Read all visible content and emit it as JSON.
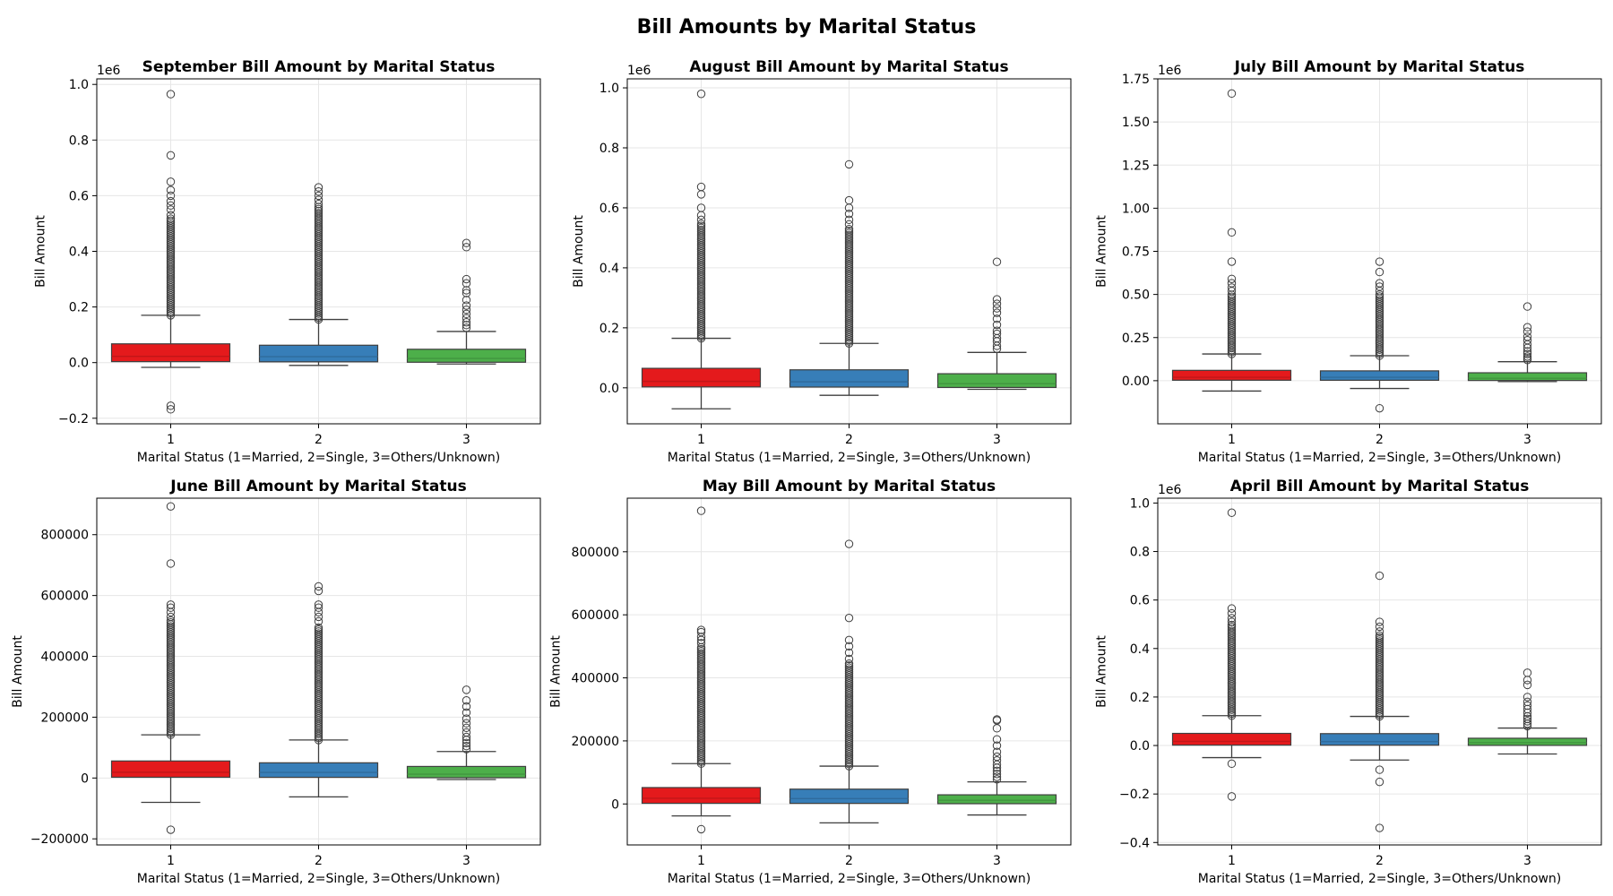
{
  "figure_title": "Bill Amounts by Marital Status",
  "colors": {
    "1": "#e41a1c",
    "2": "#377eb8",
    "3": "#4daf4a"
  },
  "chart_data": [
    {
      "type": "box",
      "title": "September Bill Amount by Marital Status",
      "xlabel": "Marital Status (1=Married, 2=Single, 3=Others/Unknown)",
      "ylabel": "Bill Amount",
      "scale_label": "1e6",
      "scale_factor": 1000000,
      "ylim": [
        -0.22,
        1.02
      ],
      "yticks": [
        -0.2,
        0.0,
        0.2,
        0.4,
        0.6,
        0.8,
        1.0
      ],
      "ytick_labels": [
        "−0.2",
        "0.0",
        "0.2",
        "0.4",
        "0.6",
        "0.8",
        "1.0"
      ],
      "grid": true,
      "categories": [
        "1",
        "2",
        "3"
      ],
      "boxes": [
        {
          "q1": 0.0035,
          "median": 0.0225,
          "q3": 0.0675,
          "whislo": -0.017,
          "whishi": 0.17,
          "outliers_dense": [
            0.17,
            0.52
          ],
          "outliers": [
            0.53,
            0.55,
            0.565,
            0.58,
            0.6,
            0.62,
            0.65,
            0.745,
            0.965,
            -0.155,
            -0.168
          ]
        },
        {
          "q1": 0.0028,
          "median": 0.0215,
          "q3": 0.0625,
          "whislo": -0.01,
          "whishi": 0.155,
          "outliers_dense": [
            0.155,
            0.56
          ],
          "outliers": [
            0.57,
            0.585,
            0.6,
            0.615,
            0.63
          ]
        },
        {
          "q1": 0.0013,
          "median": 0.015,
          "q3": 0.048,
          "whislo": -0.005,
          "whishi": 0.112,
          "outliers_dense": [],
          "outliers": [
            0.125,
            0.135,
            0.145,
            0.16,
            0.175,
            0.19,
            0.205,
            0.225,
            0.25,
            0.26,
            0.285,
            0.3,
            0.415,
            0.43
          ]
        }
      ]
    },
    {
      "type": "box",
      "title": "August Bill Amount by Marital Status",
      "xlabel": "Marital Status (1=Married, 2=Single, 3=Others/Unknown)",
      "ylabel": "Bill Amount",
      "scale_label": "1e6",
      "scale_factor": 1000000,
      "ylim": [
        -0.12,
        1.03
      ],
      "yticks": [
        0.0,
        0.2,
        0.4,
        0.6,
        0.8,
        1.0
      ],
      "ytick_labels": [
        "0.0",
        "0.2",
        "0.4",
        "0.6",
        "0.8",
        "1.0"
      ],
      "grid": true,
      "categories": [
        "1",
        "2",
        "3"
      ],
      "boxes": [
        {
          "q1": 0.003,
          "median": 0.0215,
          "q3": 0.065,
          "whislo": -0.07,
          "whishi": 0.165,
          "outliers_dense": [
            0.165,
            0.55
          ],
          "outliers": [
            0.56,
            0.575,
            0.6,
            0.645,
            0.67,
            0.98
          ]
        },
        {
          "q1": 0.0025,
          "median": 0.02,
          "q3": 0.06,
          "whislo": -0.025,
          "whishi": 0.148,
          "outliers_dense": [
            0.148,
            0.53
          ],
          "outliers": [
            0.545,
            0.56,
            0.58,
            0.6,
            0.625,
            0.745
          ]
        },
        {
          "q1": 0.0012,
          "median": 0.014,
          "q3": 0.047,
          "whislo": -0.005,
          "whishi": 0.118,
          "outliers_dense": [],
          "outliers": [
            0.13,
            0.14,
            0.155,
            0.165,
            0.18,
            0.19,
            0.21,
            0.23,
            0.25,
            0.265,
            0.28,
            0.295,
            0.42
          ]
        }
      ]
    },
    {
      "type": "box",
      "title": "July Bill Amount by Marital Status",
      "xlabel": "Marital Status (1=Married, 2=Single, 3=Others/Unknown)",
      "ylabel": "Bill Amount",
      "scale_label": "1e6",
      "scale_factor": 1000000,
      "ylim": [
        -0.25,
        1.75
      ],
      "yticks": [
        0.0,
        0.25,
        0.5,
        0.75,
        1.0,
        1.25,
        1.5,
        1.75
      ],
      "ytick_labels": [
        "0.00",
        "0.25",
        "0.50",
        "0.75",
        "1.00",
        "1.25",
        "1.50",
        "1.75"
      ],
      "grid": true,
      "categories": [
        "1",
        "2",
        "3"
      ],
      "boxes": [
        {
          "q1": 0.0027,
          "median": 0.02,
          "q3": 0.06,
          "whislo": -0.06,
          "whishi": 0.155,
          "outliers_dense": [
            0.155,
            0.5
          ],
          "outliers": [
            0.52,
            0.54,
            0.565,
            0.59,
            0.69,
            0.86,
            1.665
          ]
        },
        {
          "q1": 0.0025,
          "median": 0.02,
          "q3": 0.057,
          "whislo": -0.045,
          "whishi": 0.145,
          "outliers_dense": [
            0.145,
            0.5
          ],
          "outliers": [
            0.52,
            0.545,
            0.565,
            0.63,
            0.69,
            -0.16
          ]
        },
        {
          "q1": 0.0012,
          "median": 0.014,
          "q3": 0.046,
          "whislo": -0.005,
          "whishi": 0.11,
          "outliers_dense": [],
          "outliers": [
            0.12,
            0.13,
            0.14,
            0.155,
            0.17,
            0.19,
            0.21,
            0.235,
            0.255,
            0.285,
            0.31,
            0.43
          ]
        }
      ]
    },
    {
      "type": "box",
      "title": "June Bill Amount by Marital Status",
      "xlabel": "Marital Status (1=Married, 2=Single, 3=Others/Unknown)",
      "ylabel": "Bill Amount",
      "scale_label": "",
      "scale_factor": 1,
      "ylim": [
        -220000,
        920000
      ],
      "yticks": [
        -200000,
        0,
        200000,
        400000,
        600000,
        800000
      ],
      "ytick_labels": [
        "−200000",
        "0",
        "200000",
        "400000",
        "600000",
        "800000"
      ],
      "grid": true,
      "categories": [
        "1",
        "2",
        "3"
      ],
      "boxes": [
        {
          "q1": 2500,
          "median": 19000,
          "q3": 56000,
          "whislo": -80000,
          "whishi": 142000,
          "outliers_dense": [
            142000,
            520000
          ],
          "outliers": [
            530000,
            545000,
            560000,
            570000,
            705000,
            893000,
            -170000
          ]
        },
        {
          "q1": 2300,
          "median": 18500,
          "q3": 50000,
          "whislo": -62000,
          "whishi": 125000,
          "outliers_dense": [
            125000,
            500000
          ],
          "outliers": [
            515000,
            530000,
            545000,
            560000,
            570000,
            615000,
            630000
          ]
        },
        {
          "q1": 1000,
          "median": 12500,
          "q3": 38000,
          "whislo": -5000,
          "whishi": 87000,
          "outliers_dense": [],
          "outliers": [
            95000,
            105000,
            115000,
            125000,
            135000,
            150000,
            165000,
            180000,
            195000,
            215000,
            235000,
            255000,
            290000
          ]
        }
      ]
    },
    {
      "type": "box",
      "title": "May Bill Amount by Marital Status",
      "xlabel": "Marital Status (1=Married, 2=Single, 3=Others/Unknown)",
      "ylabel": "Bill Amount",
      "scale_label": "",
      "scale_factor": 1,
      "ylim": [
        -130000,
        970000
      ],
      "yticks": [
        0,
        200000,
        400000,
        600000,
        800000
      ],
      "ytick_labels": [
        "0",
        "200000",
        "400000",
        "600000",
        "800000"
      ],
      "grid": true,
      "categories": [
        "1",
        "2",
        "3"
      ],
      "boxes": [
        {
          "q1": 2000,
          "median": 18000,
          "q3": 52000,
          "whislo": -38000,
          "whishi": 128000,
          "outliers_dense": [
            128000,
            500000
          ],
          "outliers": [
            510000,
            520000,
            530000,
            545000,
            552000,
            930000,
            -80000
          ]
        },
        {
          "q1": 1800,
          "median": 17000,
          "q3": 47000,
          "whislo": -60000,
          "whishi": 120000,
          "outliers_dense": [
            120000,
            450000
          ],
          "outliers": [
            460000,
            480000,
            500000,
            520000,
            590000,
            825000
          ]
        },
        {
          "q1": 800,
          "median": 11500,
          "q3": 29000,
          "whislo": -35000,
          "whishi": 70000,
          "outliers_dense": [],
          "outliers": [
            78000,
            86000,
            95000,
            105000,
            115000,
            125000,
            138000,
            150000,
            165000,
            185000,
            205000,
            240000,
            265000,
            268000
          ]
        }
      ]
    },
    {
      "type": "box",
      "title": "April Bill Amount by Marital Status",
      "xlabel": "Marital Status (1=Married, 2=Single, 3=Others/Unknown)",
      "ylabel": "Bill Amount",
      "scale_label": "1e6",
      "scale_factor": 1000000,
      "ylim": [
        -0.41,
        1.02
      ],
      "yticks": [
        -0.4,
        -0.2,
        0.0,
        0.2,
        0.4,
        0.6,
        0.8,
        1.0
      ],
      "ytick_labels": [
        "−0.4",
        "−0.2",
        "0.0",
        "0.2",
        "0.4",
        "0.6",
        "0.8",
        "1.0"
      ],
      "grid": true,
      "categories": [
        "1",
        "2",
        "3"
      ],
      "boxes": [
        {
          "q1": 0.0015,
          "median": 0.017,
          "q3": 0.05,
          "whislo": -0.05,
          "whishi": 0.123,
          "outliers_dense": [
            0.123,
            0.5
          ],
          "outliers": [
            0.51,
            0.525,
            0.545,
            0.565,
            0.96,
            -0.075,
            -0.21
          ]
        },
        {
          "q1": 0.0013,
          "median": 0.016,
          "q3": 0.049,
          "whislo": -0.06,
          "whishi": 0.12,
          "outliers_dense": [
            0.12,
            0.46
          ],
          "outliers": [
            0.47,
            0.49,
            0.51,
            0.7,
            -0.1,
            -0.15,
            -0.34
          ]
        },
        {
          "q1": 0.0005,
          "median": 0.012,
          "q3": 0.03,
          "whislo": -0.035,
          "whishi": 0.072,
          "outliers_dense": [],
          "outliers": [
            0.08,
            0.09,
            0.1,
            0.11,
            0.12,
            0.135,
            0.15,
            0.165,
            0.18,
            0.2,
            0.25,
            0.27,
            0.3
          ]
        }
      ]
    }
  ]
}
